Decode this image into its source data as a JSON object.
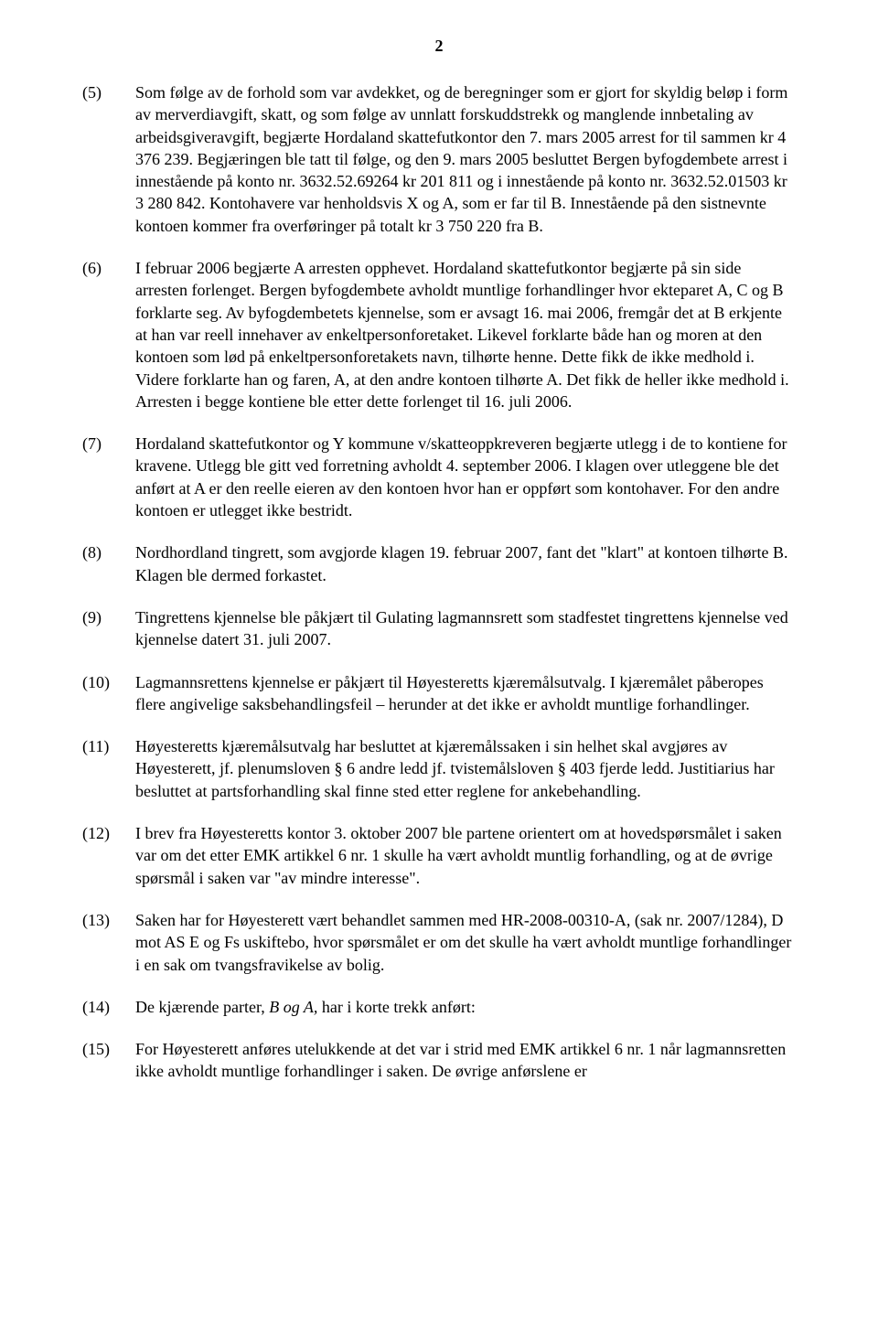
{
  "page_number": "2",
  "font": {
    "family": "Times New Roman",
    "body_size_pt": 18,
    "line_height": 1.35,
    "page_number_weight": "bold",
    "color": "#000000",
    "background": "#ffffff"
  },
  "paragraphs": [
    {
      "num": "(5)",
      "text": "Som følge av de forhold som var avdekket, og de beregninger som er gjort for skyldig beløp i form av merverdiavgift, skatt, og som følge av unnlatt forskuddstrekk og manglende innbetaling av arbeidsgiveravgift, begjærte Hordaland skattefutkontor den 7. mars 2005 arrest for til sammen kr 4 376 239. Begjæringen ble tatt til følge, og den 9. mars 2005 besluttet Bergen byfogdembete arrest i innestående på konto nr. 3632.52.69264 kr 201 811 og i innestående på konto nr. 3632.52.01503 kr 3 280 842. Kontohavere var henholdsvis X og A, som er far til B. Innestående på den sistnevnte kontoen kommer fra overføringer på totalt kr 3 750 220 fra B."
    },
    {
      "num": "(6)",
      "text": "I februar 2006 begjærte A arresten opphevet. Hordaland skattefutkontor begjærte på sin side arresten forlenget. Bergen byfogdembete avholdt muntlige forhandlinger hvor ekteparet A, C og B forklarte seg. Av byfogdembetets kjennelse, som er avsagt 16. mai 2006, fremgår det at B erkjente at han var reell innehaver av enkeltpersonforetaket. Likevel forklarte både han og moren at den kontoen som lød på enkeltpersonforetakets navn, tilhørte henne. Dette fikk de ikke medhold i. Videre forklarte han og faren, A, at den andre kontoen tilhørte A. Det fikk de heller ikke medhold i. Arresten i begge kontiene ble etter dette forlenget til 16. juli 2006."
    },
    {
      "num": "(7)",
      "text": "Hordaland skattefutkontor og Y kommune v/skatteoppkreveren begjærte utlegg i de to kontiene for kravene. Utlegg ble gitt ved forretning avholdt 4. september 2006. I klagen over utleggene ble det anført at A er den reelle eieren av den kontoen hvor han er oppført som kontohaver. For den andre kontoen er utlegget ikke bestridt."
    },
    {
      "num": "(8)",
      "text": "Nordhordland tingrett, som avgjorde klagen 19. februar 2007, fant det \"klart\" at kontoen tilhørte B. Klagen ble dermed forkastet."
    },
    {
      "num": "(9)",
      "text": "Tingrettens kjennelse ble påkjært til Gulating lagmannsrett som stadfestet tingrettens kjennelse ved kjennelse datert 31. juli 2007."
    },
    {
      "num": "(10)",
      "text": "Lagmannsrettens kjennelse er påkjært til Høyesteretts kjæremålsutvalg. I kjæremålet påberopes flere angivelige saksbehandlingsfeil – herunder at det ikke er avholdt muntlige forhandlinger."
    },
    {
      "num": "(11)",
      "text": "Høyesteretts kjæremålsutvalg har besluttet at kjæremålssaken i sin helhet skal avgjøres av Høyesterett, jf. plenumsloven § 6 andre ledd jf. tvistemålsloven § 403 fjerde ledd. Justitiarius har besluttet at partsforhandling skal finne sted etter reglene for ankebehandling."
    },
    {
      "num": "(12)",
      "text": "I brev fra Høyesteretts kontor 3. oktober 2007 ble partene orientert om at hovedspørsmålet i saken var om det etter EMK artikkel 6 nr. 1 skulle ha vært avholdt muntlig forhandling, og at de øvrige spørsmål i saken var \"av mindre interesse\"."
    },
    {
      "num": "(13)",
      "text": "Saken har for Høyesterett vært behandlet sammen med HR-2008-00310-A, (sak nr. 2007/1284), D mot AS E og Fs uskiftebo, hvor spørsmålet er om det skulle ha vært avholdt muntlige forhandlinger i en sak om tvangsfravikelse av bolig."
    },
    {
      "num": "(14)",
      "text_before": "De kjærende parter, ",
      "italic": "B og A,",
      "text_after": " har i korte trekk anført:"
    },
    {
      "num": "(15)",
      "text": "For Høyesterett anføres utelukkende at det var i strid med EMK artikkel 6 nr. 1 når lagmannsretten ikke avholdt muntlige forhandlinger i saken. De øvrige anførslene er"
    }
  ]
}
